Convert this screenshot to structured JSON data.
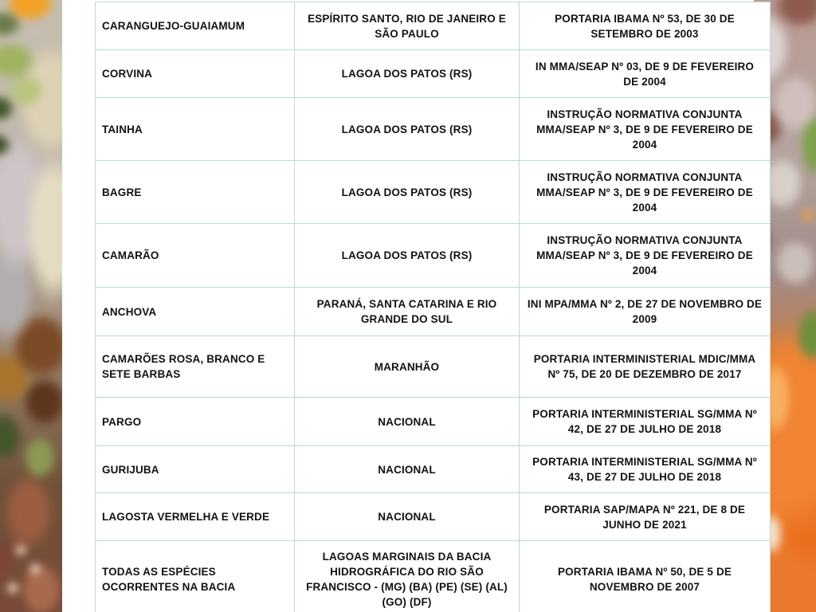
{
  "colors": {
    "table_border": "#bcd9d2",
    "text": "#121212",
    "panel_background": "#ffffff"
  },
  "table": {
    "rows": [
      {
        "species": "CARANGUEJO-GUAIAMUM",
        "region": "ESPÍRITO SANTO, RIO DE JANEIRO E SÃO PAULO",
        "regulation": "PORTARIA IBAMA Nº 53, DE 30 DE SETEMBRO DE 2003"
      },
      {
        "species": "CORVINA",
        "region": "LAGOA DOS PATOS (RS)",
        "regulation": "IN MMA/SEAP Nº 03, DE 9 DE FEVEREIRO DE 2004"
      },
      {
        "species": "TAINHA",
        "region": "LAGOA DOS PATOS (RS)",
        "regulation": "INSTRUÇÃO NORMATIVA CONJUNTA MMA/SEAP Nº 3, DE 9 DE FEVEREIRO DE 2004"
      },
      {
        "species": "BAGRE",
        "region": "LAGOA DOS PATOS (RS)",
        "regulation": "INSTRUÇÃO NORMATIVA CONJUNTA MMA/SEAP Nº 3, DE 9 DE FEVEREIRO DE 2004"
      },
      {
        "species": "CAMARÃO",
        "region": "LAGOA DOS PATOS (RS)",
        "regulation": "INSTRUÇÃO NORMATIVA CONJUNTA MMA/SEAP Nº 3, DE 9 DE FEVEREIRO DE 2004"
      },
      {
        "species": "ANCHOVA",
        "region": "PARANÁ, SANTA CATARINA E RIO GRANDE DO SUL",
        "regulation": "INI MPA/MMA Nº 2, DE 27 DE NOVEMBRO DE 2009"
      },
      {
        "species": "CAMARÕES ROSA, BRANCO E SETE BARBAS",
        "region": "MARANHÃO",
        "regulation": "PORTARIA INTERMINISTERIAL MDIC/MMA Nº 75, DE 20 DE DEZEMBRO DE 2017"
      },
      {
        "species": "PARGO",
        "region": "NACIONAL",
        "regulation": "PORTARIA INTERMINISTERIAL SG/MMA Nº 42, DE 27 DE JULHO DE 2018"
      },
      {
        "species": "GURIJUBA",
        "region": "NACIONAL",
        "regulation": "PORTARIA INTERMINISTERIAL SG/MMA Nº 43, DE 27 DE JULHO DE 2018"
      },
      {
        "species": "LAGOSTA VERMELHA E VERDE",
        "region": "NACIONAL",
        "regulation": "PORTARIA SAP/MAPA Nº 221, DE 8 DE JUNHO DE 2021"
      },
      {
        "species": "TODAS AS ESPÉCIES OCORRENTES NA BACIA",
        "region": "LAGOAS MARGINAIS DA BACIA HIDROGRÁFICA DO RIO SÃO FRANCISCO - (MG) (BA) (PE) (SE) (AL) (GO) (DF)",
        "regulation": "PORTARIA IBAMA Nº 50, DE 5 DE NOVEMBRO DE 2007"
      }
    ]
  }
}
